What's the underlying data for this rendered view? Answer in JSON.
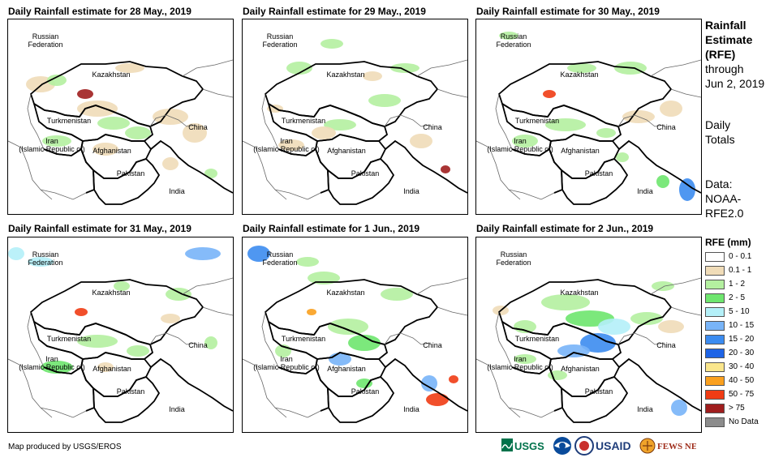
{
  "panels": [
    {
      "title": "Daily Rainfall estimate for 28 May., 2019"
    },
    {
      "title": "Daily Rainfall estimate for 29 May., 2019"
    },
    {
      "title": "Daily Rainfall estimate for 30 May., 2019"
    },
    {
      "title": "Daily Rainfall estimate for 31 May., 2019"
    },
    {
      "title": "Daily Rainfall estimate for 1 Jun., 2019"
    },
    {
      "title": "Daily Rainfall estimate for 2 Jun., 2019"
    }
  ],
  "map_labels": {
    "russia": "Russian\nFederation",
    "kazakhstan": "Kazakhstan",
    "turkmenistan": "Turkmenistan",
    "china": "China",
    "iran": "Iran\n(Islamic Republic of)",
    "afghanistan": "Afghanistan",
    "pakistan": "Pakistan",
    "india": "India"
  },
  "side": {
    "title_line1": "Rainfall",
    "title_line2": "Estimate",
    "title_line3": "(RFE)",
    "through": "through",
    "date": "Jun 2, 2019",
    "totals1": "Daily",
    "totals2": "Totals",
    "data1": "Data:",
    "data2": "NOAA-",
    "data3": "RFE2.0"
  },
  "legend": {
    "title": "RFE (mm)",
    "items": [
      {
        "label": "0 - 0.1",
        "color": "#ffffff"
      },
      {
        "label": "0.1 - 1",
        "color": "#f0dcb8"
      },
      {
        "label": "1 - 2",
        "color": "#b4f0a0"
      },
      {
        "label": "2 - 5",
        "color": "#6ee66e"
      },
      {
        "label": "5 - 10",
        "color": "#b4f0f8"
      },
      {
        "label": "10 - 15",
        "color": "#78b4f8"
      },
      {
        "label": "15 - 20",
        "color": "#3c8cf0"
      },
      {
        "label": "20 - 30",
        "color": "#1e64e6"
      },
      {
        "label": "30 - 40",
        "color": "#fae68c"
      },
      {
        "label": "40 - 50",
        "color": "#faa01e"
      },
      {
        "label": "50 - 75",
        "color": "#f03c14"
      },
      {
        "label": "> 75",
        "color": "#a01e1e"
      },
      {
        "label": "No Data",
        "color": "#8c8c8c"
      }
    ]
  },
  "footer": "Map produced by USGS/EROS",
  "logos": [
    "USGS",
    "NOAA",
    "USAID",
    "FEWS NET"
  ]
}
